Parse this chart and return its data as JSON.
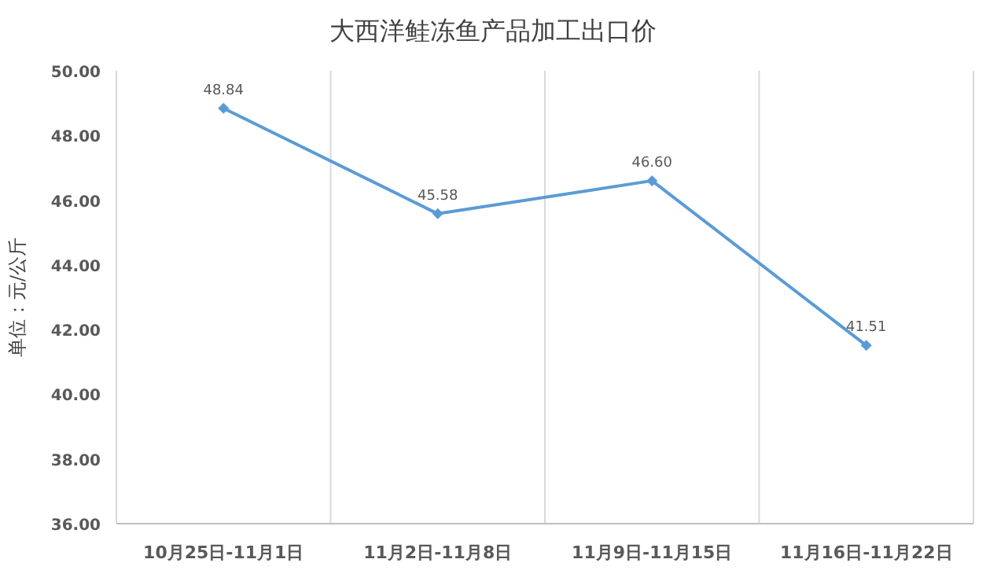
{
  "chart_data": {
    "type": "line",
    "title": "大西洋鲑冻鱼产品加工出口价",
    "ylabel": "单位：元/公斤",
    "categories": [
      "10月25日-11月1日",
      "11月2日-11月8日",
      "11月9日-11月15日",
      "11月16日-11月22日"
    ],
    "series": [
      {
        "color": "#5b9bd5",
        "values": [
          48.84,
          45.58,
          46.6,
          41.51
        ]
      }
    ],
    "value_labels": [
      "48.84",
      "45.58",
      "46.60",
      "41.51"
    ],
    "ylim": [
      36,
      50
    ],
    "yticks": [
      {
        "value": 36,
        "label": "36.00"
      },
      {
        "value": 38,
        "label": "38.00"
      },
      {
        "value": 40,
        "label": "40.00"
      },
      {
        "value": 42,
        "label": "42.00"
      },
      {
        "value": 44,
        "label": "44.00"
      },
      {
        "value": 46,
        "label": "46.00"
      },
      {
        "value": 48,
        "label": "48.00"
      },
      {
        "value": 50,
        "label": "50.00"
      }
    ],
    "grid": "x",
    "marker": "diamond",
    "line_style": "solid"
  }
}
